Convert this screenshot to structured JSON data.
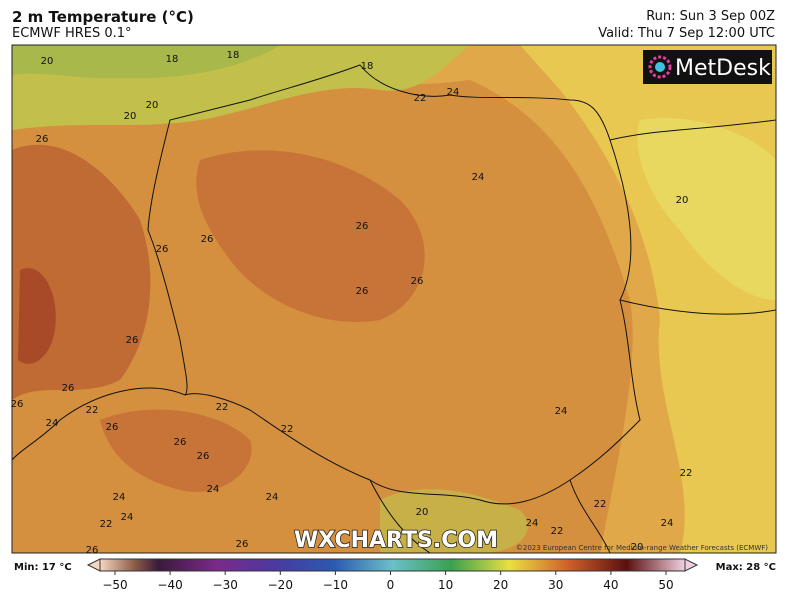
{
  "header": {
    "title": "2 m Temperature (°C)",
    "model": "ECMWF HRES 0.1°",
    "run": "Run: Sun 3 Sep 00Z",
    "valid": "Valid: Thu 7 Sep 12:00 UTC"
  },
  "logo": "MetDesk",
  "watermark": "WXCHARTS.COM",
  "copyright": "©2023 European Centre for Medium-range Weather Forecasts (ECMWF)",
  "contour_labels": [
    20,
    18,
    18,
    18,
    20,
    20,
    22,
    24,
    26,
    24,
    20,
    26,
    26,
    26,
    26,
    26,
    26,
    26,
    26,
    22,
    22,
    24,
    24,
    26,
    22,
    26,
    26,
    22,
    24,
    24,
    24,
    22,
    20,
    22,
    24,
    24,
    24,
    22,
    26,
    26,
    20
  ],
  "colorbar": {
    "min_label": "Min: 17 °C",
    "max_label": "Max: 28 °C",
    "ticks": [
      "−50",
      "−40",
      "−30",
      "−20",
      "−10",
      "0",
      "10",
      "20",
      "30",
      "40",
      "50"
    ]
  }
}
